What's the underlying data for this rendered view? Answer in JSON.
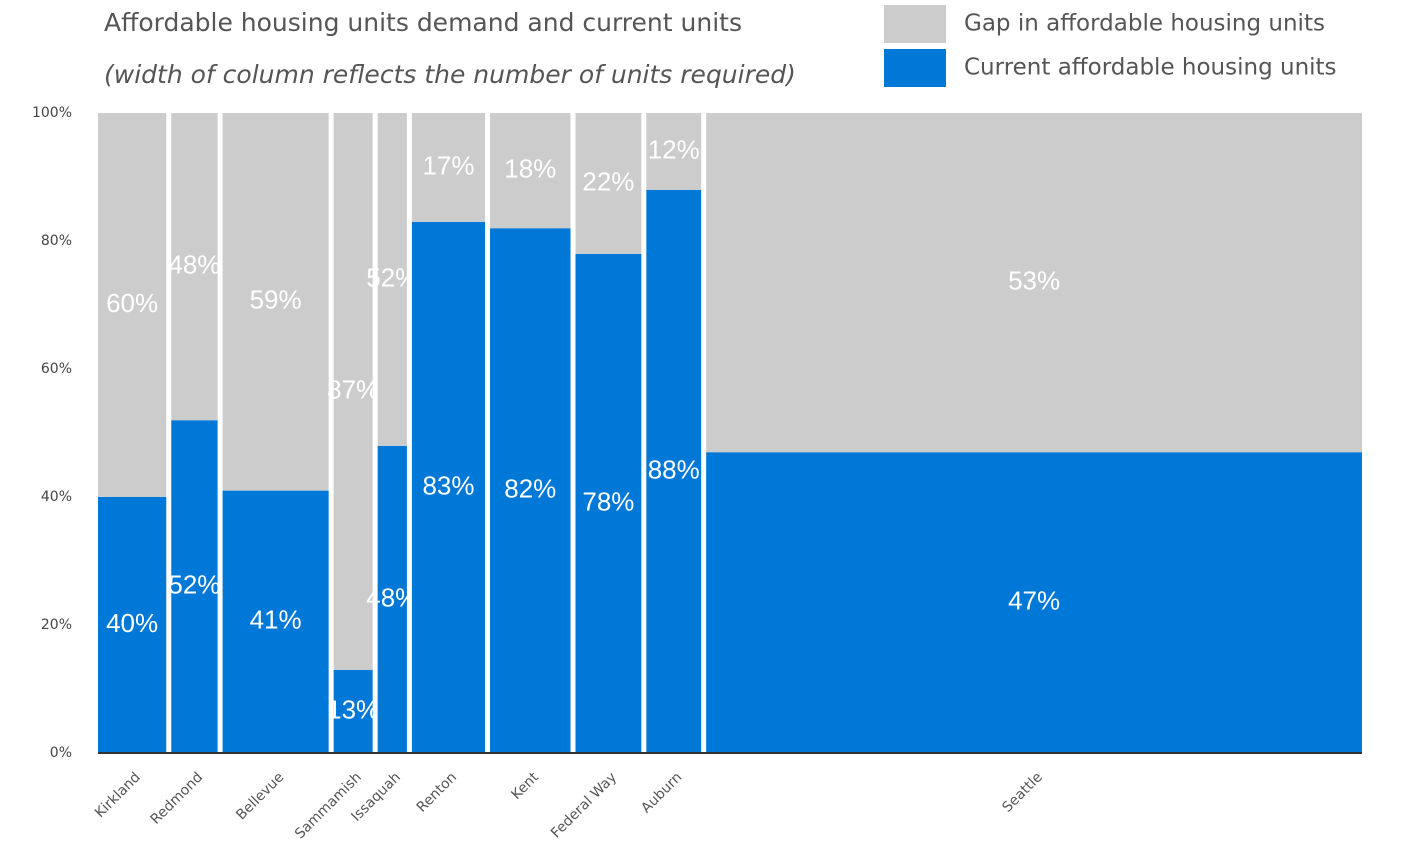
{
  "chart_data": {
    "type": "marimekko",
    "title": "Affordable housing units demand and current units",
    "subtitle": "(width of column reflects the number of units required)",
    "categories": [
      "Kirkland",
      "Redmond",
      "Bellevue",
      "Sammamish",
      "Issaquah",
      "Renton",
      "Kent",
      "Federal Way",
      "Auburn",
      "Seattle"
    ],
    "widths": [
      5.6,
      3.8,
      8.7,
      3.2,
      2.4,
      6.0,
      6.6,
      5.4,
      4.5,
      53.8
    ],
    "series": [
      {
        "name": "Current affordable housing units",
        "color": "#0078d7",
        "values": [
          40,
          52,
          41,
          13,
          48,
          83,
          82,
          78,
          88,
          47
        ],
        "value_labels": [
          "40%",
          "52%",
          "41%",
          "13%",
          "48%",
          "83%",
          "82%",
          "78%",
          "88%",
          "47%"
        ]
      },
      {
        "name": "Gap in affordable housing units",
        "color": "#cccccc",
        "values": [
          60,
          48,
          59,
          87,
          52,
          17,
          18,
          22,
          12,
          53
        ],
        "value_labels": [
          "60%",
          "48%",
          "59%",
          "87%",
          "52%",
          "17%",
          "18%",
          "22%",
          "12%",
          "53%"
        ]
      }
    ],
    "ylim": [
      0,
      100
    ],
    "yticks": [
      {
        "value": 0,
        "label": "0%"
      },
      {
        "value": 20,
        "label": "20%"
      },
      {
        "value": 40,
        "label": "40%"
      },
      {
        "value": 60,
        "label": "60%"
      },
      {
        "value": 80,
        "label": "80%"
      },
      {
        "value": 100,
        "label": "100%"
      }
    ],
    "legend": "top-right"
  }
}
